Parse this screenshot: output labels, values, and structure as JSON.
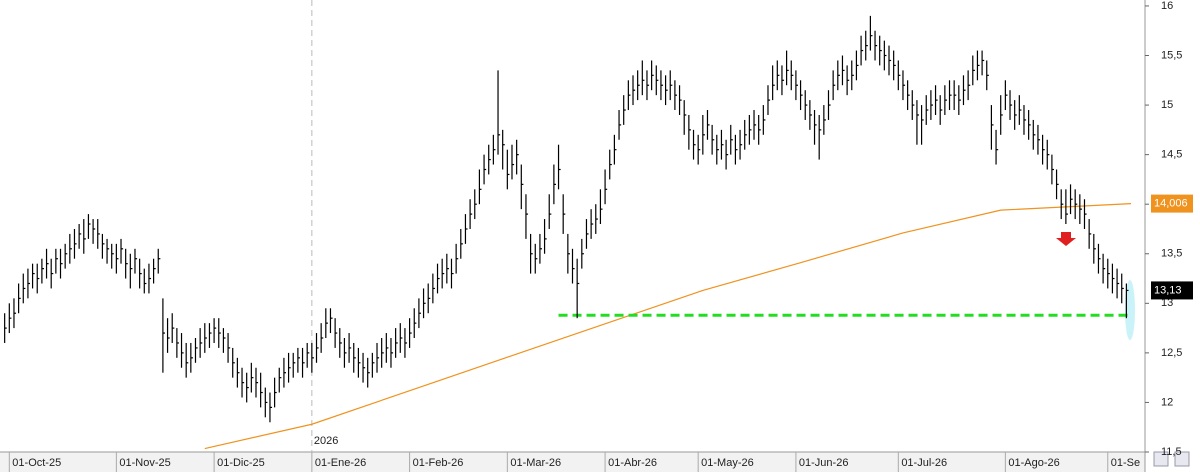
{
  "chart_data": {
    "type": "ohlc",
    "xlim": [
      -1,
      245
    ],
    "xticks": [
      {
        "value": 1,
        "label": "01-Oct-25"
      },
      {
        "value": 24,
        "label": "01-Nov-25"
      },
      {
        "value": 45,
        "label": "01-Dic-25"
      },
      {
        "value": 66,
        "label": "01-Ene-26"
      },
      {
        "value": 87,
        "label": "01-Feb-26"
      },
      {
        "value": 108,
        "label": "01-Mar-26"
      },
      {
        "value": 129,
        "label": "01-Abr-26"
      },
      {
        "value": 149,
        "label": "01-May-26"
      },
      {
        "value": 170,
        "label": "01-Jun-26"
      },
      {
        "value": 192,
        "label": "01-Jul-26"
      },
      {
        "value": 215,
        "label": "01-Ago-26"
      },
      {
        "value": 237,
        "label": "01-Se"
      }
    ],
    "year_marker": {
      "value": 66,
      "label": "2026"
    },
    "ylim": [
      11.5,
      16.06
    ],
    "yticks": [
      {
        "value": 11.5,
        "label": "11,5"
      },
      12,
      {
        "value": 12.5,
        "label": "12,5"
      },
      13,
      {
        "value": 13.5,
        "label": "13,5"
      },
      14,
      {
        "value": 14.5,
        "label": "14,5"
      },
      15,
      {
        "value": 15.5,
        "label": "15,5"
      },
      16
    ],
    "grid": false,
    "ohlc": {
      "color": "#000000",
      "value_label": "13,13",
      "high": [
        12.9,
        13.0,
        13.05,
        13.2,
        13.3,
        13.35,
        13.4,
        13.4,
        13.45,
        13.55,
        13.45,
        13.55,
        13.55,
        13.6,
        13.7,
        13.75,
        13.8,
        13.85,
        13.9,
        13.85,
        13.85,
        13.7,
        13.65,
        13.6,
        13.6,
        13.65,
        13.55,
        13.5,
        13.55,
        13.45,
        13.35,
        13.4,
        13.45,
        13.55,
        13.05,
        12.85,
        12.9,
        12.75,
        12.7,
        12.6,
        12.6,
        12.65,
        12.75,
        12.8,
        12.8,
        12.85,
        12.85,
        12.75,
        12.7,
        12.55,
        12.45,
        12.35,
        12.3,
        12.4,
        12.35,
        12.3,
        12.15,
        12.1,
        12.25,
        12.35,
        12.45,
        12.5,
        12.5,
        12.55,
        12.55,
        12.6,
        12.6,
        12.7,
        12.8,
        12.95,
        12.95,
        12.85,
        12.75,
        12.65,
        12.7,
        12.6,
        12.55,
        12.5,
        12.45,
        12.5,
        12.6,
        12.65,
        12.7,
        12.65,
        12.75,
        12.8,
        12.75,
        12.85,
        12.95,
        13.05,
        13.15,
        13.2,
        13.3,
        13.4,
        13.45,
        13.5,
        13.45,
        13.6,
        13.75,
        13.9,
        14.05,
        14.15,
        14.35,
        14.5,
        14.6,
        14.7,
        15.35,
        14.75,
        14.55,
        14.6,
        14.65,
        14.4,
        14.1,
        13.7,
        13.6,
        13.7,
        13.85,
        14.1,
        14.4,
        14.6,
        14.1,
        13.7,
        13.55,
        13.45,
        13.65,
        13.85,
        13.95,
        14.0,
        14.15,
        14.35,
        14.55,
        14.7,
        14.95,
        15.1,
        15.25,
        15.3,
        15.35,
        15.45,
        15.35,
        15.45,
        15.4,
        15.35,
        15.3,
        15.35,
        15.25,
        15.2,
        15.05,
        14.9,
        14.75,
        14.7,
        14.9,
        14.95,
        14.8,
        14.7,
        14.75,
        14.65,
        14.8,
        14.7,
        14.75,
        14.85,
        14.9,
        14.95,
        14.9,
        15.0,
        15.2,
        15.4,
        15.45,
        15.4,
        15.55,
        15.45,
        15.35,
        15.25,
        15.15,
        15.05,
        14.95,
        14.9,
        15.0,
        15.15,
        15.35,
        15.45,
        15.5,
        15.4,
        15.45,
        15.55,
        15.7,
        15.75,
        15.9,
        15.75,
        15.7,
        15.65,
        15.6,
        15.55,
        15.45,
        15.35,
        15.25,
        15.15,
        15.05,
        15.0,
        15.1,
        15.15,
        15.2,
        15.1,
        15.2,
        15.25,
        15.25,
        15.2,
        15.3,
        15.35,
        15.5,
        15.55,
        15.55,
        15.45,
        15.0,
        14.75,
        15.1,
        15.25,
        15.15,
        15.05,
        15.1,
        15.0,
        14.95,
        14.85,
        14.8,
        14.7,
        14.65,
        14.5,
        14.35,
        14.15,
        14.15,
        14.2,
        14.15,
        14.1,
        14.05,
        13.85,
        13.7,
        13.6,
        13.5,
        13.45,
        13.4,
        13.35,
        13.3,
        13.2
      ],
      "low": [
        12.6,
        12.7,
        12.75,
        12.9,
        13.0,
        13.05,
        13.15,
        13.1,
        13.2,
        13.25,
        13.15,
        13.3,
        13.25,
        13.35,
        13.4,
        13.45,
        13.55,
        13.5,
        13.65,
        13.6,
        13.55,
        13.45,
        13.4,
        13.35,
        13.3,
        13.4,
        13.25,
        13.15,
        13.3,
        13.15,
        13.1,
        13.1,
        13.2,
        13.3,
        12.3,
        12.5,
        12.6,
        12.45,
        12.35,
        12.25,
        12.3,
        12.4,
        12.45,
        12.5,
        12.55,
        12.6,
        12.55,
        12.5,
        12.4,
        12.25,
        12.15,
        12.05,
        12.0,
        12.1,
        12.05,
        11.95,
        11.85,
        11.8,
        11.95,
        12.1,
        12.15,
        12.2,
        12.25,
        12.3,
        12.25,
        12.35,
        12.3,
        12.4,
        12.5,
        12.65,
        12.7,
        12.55,
        12.45,
        12.35,
        12.4,
        12.3,
        12.25,
        12.2,
        12.15,
        12.25,
        12.3,
        12.35,
        12.4,
        12.35,
        12.45,
        12.5,
        12.45,
        12.55,
        12.65,
        12.75,
        12.85,
        12.9,
        13.0,
        13.1,
        13.15,
        13.2,
        13.15,
        13.3,
        13.45,
        13.6,
        13.75,
        13.85,
        14.0,
        14.2,
        14.3,
        14.4,
        14.5,
        14.35,
        14.15,
        14.25,
        14.3,
        13.95,
        13.65,
        13.3,
        13.3,
        13.4,
        13.5,
        13.75,
        14.0,
        14.15,
        13.7,
        13.3,
        13.2,
        12.85,
        13.35,
        13.55,
        13.65,
        13.7,
        13.8,
        14.0,
        14.25,
        14.4,
        14.65,
        14.8,
        14.95,
        15.0,
        15.05,
        15.1,
        15.05,
        15.15,
        15.1,
        15.05,
        15.0,
        15.05,
        14.95,
        14.9,
        14.7,
        14.55,
        14.45,
        14.4,
        14.5,
        14.65,
        14.5,
        14.4,
        14.45,
        14.35,
        14.5,
        14.4,
        14.45,
        14.55,
        14.6,
        14.65,
        14.6,
        14.7,
        14.9,
        15.05,
        15.15,
        15.1,
        15.2,
        15.15,
        15.05,
        14.95,
        14.85,
        14.75,
        14.6,
        14.45,
        14.7,
        14.85,
        15.05,
        15.15,
        15.2,
        15.1,
        15.15,
        15.25,
        15.4,
        15.45,
        15.55,
        15.45,
        15.4,
        15.35,
        15.3,
        15.25,
        15.15,
        15.05,
        14.95,
        14.85,
        14.6,
        14.6,
        14.8,
        14.85,
        14.9,
        14.8,
        14.9,
        14.95,
        14.95,
        14.9,
        15.0,
        15.05,
        15.2,
        15.25,
        15.3,
        15.15,
        14.55,
        14.4,
        14.7,
        14.95,
        14.85,
        14.75,
        14.8,
        14.7,
        14.65,
        14.55,
        14.5,
        14.4,
        14.35,
        14.2,
        14.05,
        13.85,
        13.8,
        13.9,
        13.85,
        13.8,
        13.75,
        13.55,
        13.4,
        13.3,
        13.2,
        13.15,
        13.1,
        13.05,
        13.0,
        12.85
      ],
      "close": [
        12.75,
        12.85,
        12.9,
        13.05,
        13.15,
        13.2,
        13.3,
        13.25,
        13.35,
        13.4,
        13.3,
        13.45,
        13.4,
        13.5,
        13.55,
        13.6,
        13.7,
        13.65,
        13.8,
        13.75,
        13.7,
        13.6,
        13.55,
        13.5,
        13.45,
        13.55,
        13.4,
        13.35,
        13.45,
        13.3,
        13.2,
        13.25,
        13.35,
        13.45,
        12.7,
        12.65,
        12.75,
        12.6,
        12.5,
        12.4,
        12.45,
        12.55,
        12.6,
        12.65,
        12.7,
        12.75,
        12.7,
        12.65,
        12.55,
        12.4,
        12.3,
        12.2,
        12.15,
        12.25,
        12.2,
        12.1,
        12.0,
        11.95,
        12.1,
        12.25,
        12.3,
        12.35,
        12.4,
        12.45,
        12.4,
        12.5,
        12.45,
        12.55,
        12.65,
        12.8,
        12.85,
        12.7,
        12.6,
        12.5,
        12.55,
        12.45,
        12.4,
        12.35,
        12.3,
        12.4,
        12.45,
        12.5,
        12.55,
        12.5,
        12.6,
        12.65,
        12.6,
        12.7,
        12.8,
        12.9,
        13.0,
        13.05,
        13.15,
        13.25,
        13.3,
        13.35,
        13.3,
        13.45,
        13.6,
        13.75,
        13.9,
        14.0,
        14.15,
        14.35,
        14.45,
        14.55,
        14.7,
        14.6,
        14.3,
        14.4,
        14.5,
        14.2,
        13.9,
        13.5,
        13.45,
        13.55,
        13.65,
        13.9,
        14.2,
        14.35,
        13.9,
        13.5,
        13.35,
        13.2,
        13.5,
        13.7,
        13.8,
        13.85,
        13.95,
        14.15,
        14.4,
        14.55,
        14.8,
        14.95,
        15.1,
        15.15,
        15.2,
        15.25,
        15.2,
        15.3,
        15.25,
        15.2,
        15.15,
        15.2,
        15.1,
        15.05,
        14.9,
        14.75,
        14.6,
        14.55,
        14.7,
        14.8,
        14.65,
        14.55,
        14.6,
        14.5,
        14.65,
        14.55,
        14.6,
        14.7,
        14.75,
        14.8,
        14.75,
        14.85,
        15.05,
        15.2,
        15.3,
        15.25,
        15.35,
        15.3,
        15.2,
        15.1,
        15.0,
        14.9,
        14.8,
        14.75,
        14.85,
        15.0,
        15.2,
        15.3,
        15.35,
        15.25,
        15.3,
        15.4,
        15.55,
        15.6,
        15.7,
        15.6,
        15.55,
        15.5,
        15.45,
        15.4,
        15.3,
        15.2,
        15.1,
        15.0,
        14.9,
        14.85,
        14.95,
        15.0,
        15.05,
        14.95,
        15.05,
        15.1,
        15.1,
        15.05,
        15.15,
        15.2,
        15.35,
        15.4,
        15.45,
        15.3,
        14.8,
        14.55,
        14.9,
        15.1,
        15.0,
        14.9,
        14.95,
        14.85,
        14.8,
        14.7,
        14.65,
        14.55,
        14.5,
        14.35,
        14.2,
        14.0,
        13.9,
        14.05,
        14.0,
        13.95,
        13.9,
        13.7,
        13.55,
        13.45,
        13.35,
        13.3,
        13.25,
        13.2,
        13.15,
        13.13
      ]
    },
    "moving_average": {
      "color": "#f0921e",
      "value_label": "14,006",
      "x": [
        43,
        66,
        107,
        150,
        171,
        193,
        214,
        242
      ],
      "values": [
        11.535,
        11.78,
        12.44,
        13.13,
        13.41,
        13.71,
        13.94,
        14.006
      ]
    },
    "support_line": {
      "color": "#22dd22",
      "value": 12.88,
      "x": [
        119,
        242
      ]
    }
  }
}
